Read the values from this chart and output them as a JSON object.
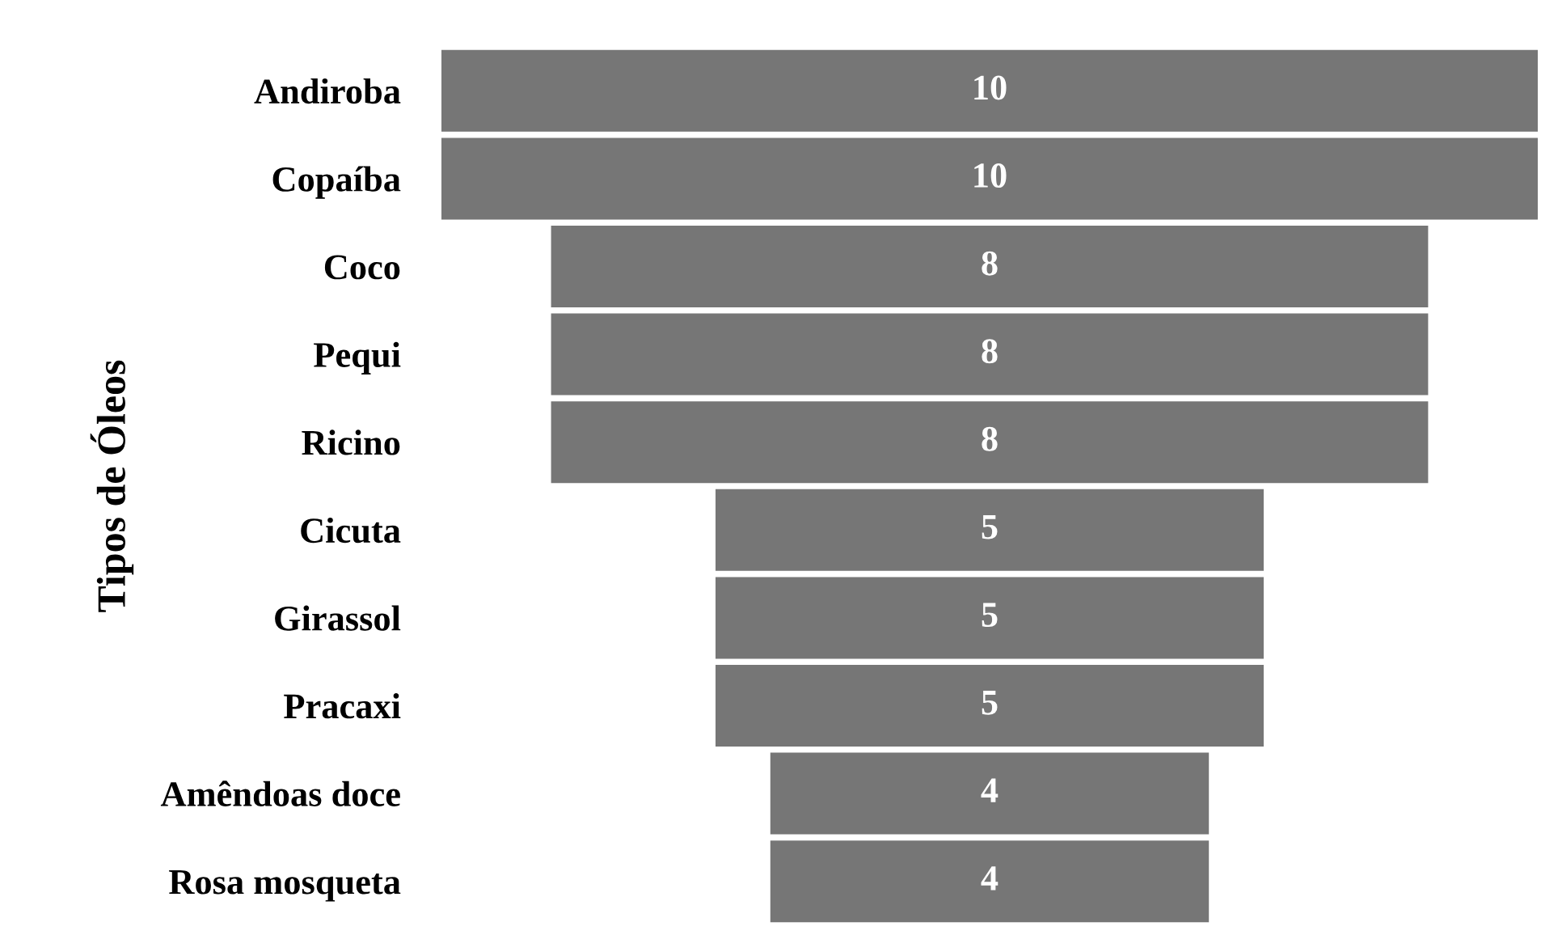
{
  "chart_data": {
    "type": "other",
    "ylabel": "Tipos de Óleos",
    "categories": [
      "Andiroba",
      "Copaíba",
      "Coco",
      "Pequi",
      "Ricino",
      "Cicuta",
      "Girassol",
      "Pracaxi",
      "Amêndoas doce",
      "Rosa mosqueta"
    ],
    "values": [
      10,
      10,
      8,
      8,
      8,
      5,
      5,
      5,
      4,
      4
    ],
    "color": "#767676",
    "data_labels": true
  }
}
